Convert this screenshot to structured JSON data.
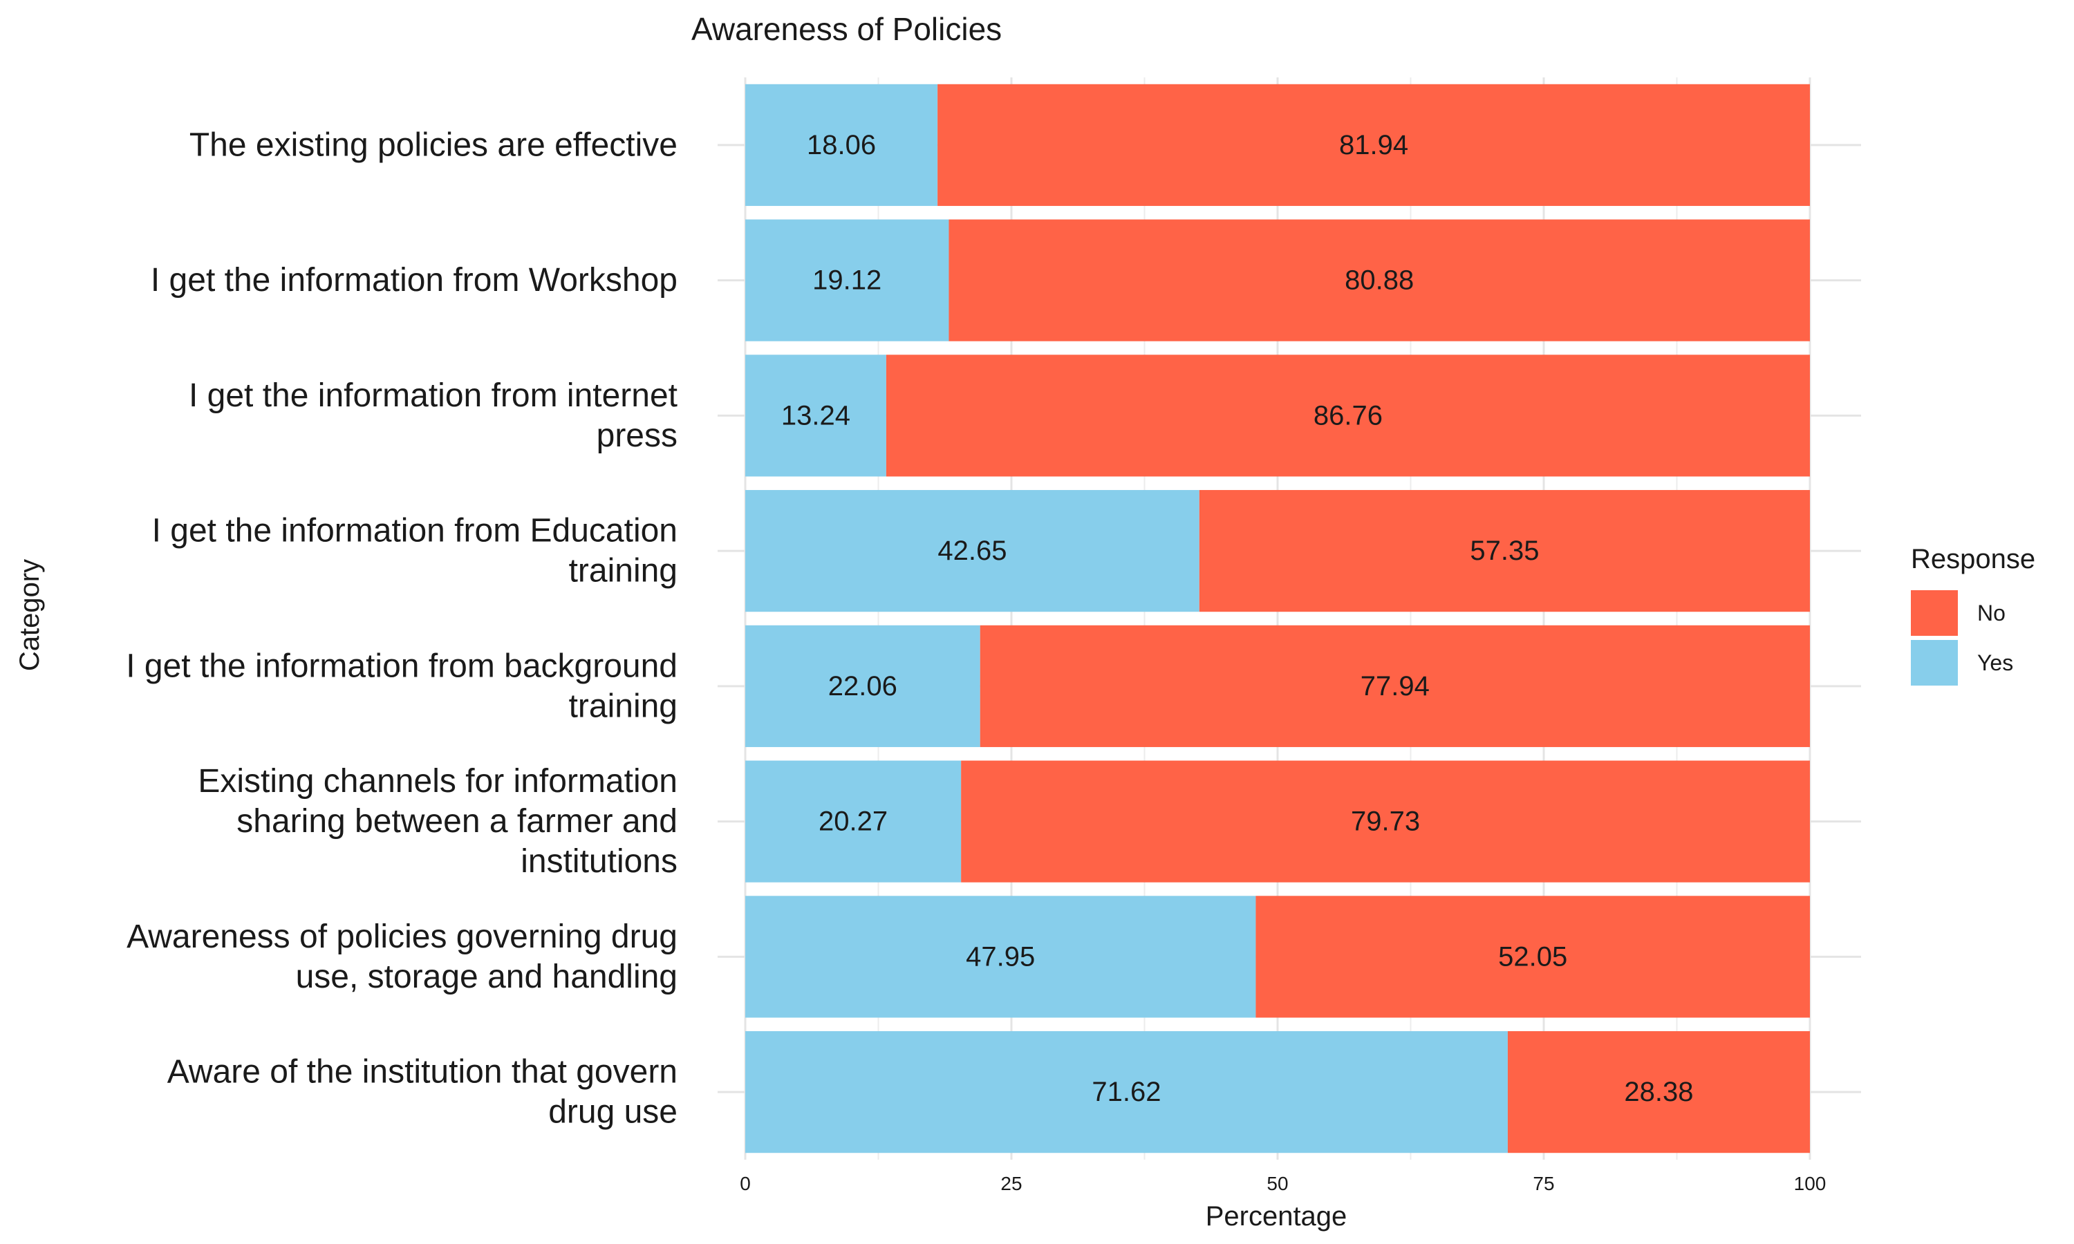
{
  "chart_data": {
    "type": "bar",
    "orientation": "horizontal",
    "stacked": true,
    "title": "Awareness of Policies",
    "xlabel": "Percentage",
    "ylabel": "Category",
    "xlim": [
      0,
      100
    ],
    "xticks": [
      0,
      25,
      50,
      75,
      100
    ],
    "grid": true,
    "legend": {
      "title": "Response",
      "position": "right",
      "entries": [
        "No",
        "Yes"
      ]
    },
    "categories": [
      "The existing policies are effective",
      "I get the information from Workshop",
      "I get the information from internet press",
      "I get the information from Education training",
      "I get the information from background training",
      "Existing channels for information sharing between a farmer and institutions",
      "Awareness of policies governing drug use, storage and handling",
      "Aware of the institution that govern drug use"
    ],
    "category_label_lines": [
      [
        "The existing policies are effective"
      ],
      [
        "I get the information from Workshop"
      ],
      [
        "I get the information from internet",
        "press"
      ],
      [
        "I get the information from Education",
        "training"
      ],
      [
        "I get the information from background",
        "training"
      ],
      [
        "Existing channels for information",
        "sharing between a farmer and",
        "institutions"
      ],
      [
        "Awareness of policies governing drug",
        "use, storage and handling"
      ],
      [
        "Aware of the institution that govern",
        "drug use"
      ]
    ],
    "series": [
      {
        "name": "Yes",
        "color": "#87CEEB",
        "values": [
          18.06,
          19.12,
          13.24,
          42.65,
          22.06,
          20.27,
          47.95,
          71.62
        ]
      },
      {
        "name": "No",
        "color": "#FF6347",
        "values": [
          81.94,
          80.88,
          86.76,
          57.35,
          77.94,
          79.73,
          52.05,
          28.38
        ]
      }
    ]
  }
}
